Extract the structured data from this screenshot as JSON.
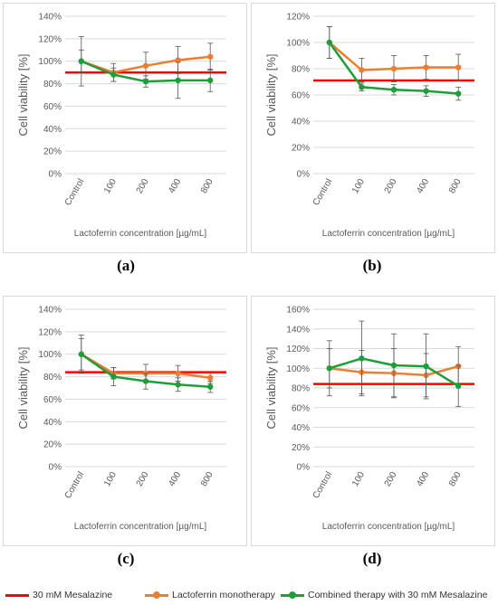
{
  "colors": {
    "mesalazine": "#ff0000",
    "monotherapy": "#ed7d31",
    "combined": "#1e9e3a",
    "error_bar": "#555555",
    "grid": "#d9d9d9",
    "axis_text": "#595959"
  },
  "legend": {
    "mesalazine": "30 mM Mesalazine",
    "monotherapy": "Lactoferrin monotherapy",
    "combined": "Combined therapy with 30 mM Mesalazine"
  },
  "panels": [
    {
      "label": "(a)"
    },
    {
      "label": "(b)"
    },
    {
      "label": "(c)"
    },
    {
      "label": "(d)"
    }
  ],
  "chart_data": [
    {
      "type": "line",
      "panel": "(a)",
      "ylabel": "Cell viability [%]",
      "xlabel": "Lactoferrin concentration [µg/mL]",
      "categories": [
        "Control",
        "100",
        "200",
        "400",
        "800"
      ],
      "ylim": [
        0,
        140
      ],
      "y_tick_step": 20,
      "y_tick_suffix": "%",
      "grid": true,
      "legend_placement": "bottom",
      "reference_line": {
        "name": "30 mM Mesalazine",
        "value": 90
      },
      "series": [
        {
          "name": "Lactoferrin monotherapy",
          "values": [
            100,
            90,
            96,
            101,
            104
          ],
          "errors": [
            22,
            8,
            12,
            12,
            12
          ]
        },
        {
          "name": "Combined therapy with 30 mM Mesalazine",
          "values": [
            100,
            88,
            82,
            83,
            83
          ],
          "errors": [
            10,
            6,
            5,
            16,
            10
          ]
        }
      ]
    },
    {
      "type": "line",
      "panel": "(b)",
      "ylabel": "Cell viability [%]",
      "xlabel": "Lactoferrin concentration [µg/mL]",
      "categories": [
        "Control",
        "100",
        "200",
        "400",
        "800"
      ],
      "ylim": [
        0,
        120
      ],
      "y_tick_step": 20,
      "y_tick_suffix": "%",
      "grid": true,
      "legend_placement": "bottom",
      "reference_line": {
        "name": "30 mM Mesalazine",
        "value": 71
      },
      "series": [
        {
          "name": "Lactoferrin monotherapy",
          "values": [
            100,
            79,
            80,
            81,
            81
          ],
          "errors": [
            12,
            9,
            10,
            9,
            10
          ]
        },
        {
          "name": "Combined therapy with 30 mM Mesalazine",
          "values": [
            100,
            66,
            64,
            63,
            61
          ],
          "errors": [
            12,
            3,
            4,
            4,
            5
          ]
        }
      ]
    },
    {
      "type": "line",
      "panel": "(c)",
      "ylabel": "Cell viability [%]",
      "xlabel": "Lactoferrin concentration [µg/mL]",
      "categories": [
        "Control",
        "100",
        "200",
        "400",
        "800"
      ],
      "ylim": [
        0,
        140
      ],
      "y_tick_step": 20,
      "y_tick_suffix": "%",
      "grid": true,
      "legend_placement": "bottom",
      "reference_line": {
        "name": "30 mM Mesalazine",
        "value": 84
      },
      "series": [
        {
          "name": "Lactoferrin monotherapy",
          "values": [
            100,
            83,
            83,
            83,
            79
          ],
          "errors": [
            17,
            5,
            8,
            7,
            5
          ]
        },
        {
          "name": "Combined therapy with 30 mM Mesalazine",
          "values": [
            100,
            80,
            76,
            73,
            71
          ],
          "errors": [
            14,
            8,
            7,
            6,
            5
          ]
        }
      ]
    },
    {
      "type": "line",
      "panel": "(d)",
      "ylabel": "Cell viability [%]",
      "xlabel": "Lactoferrin concentration [µg/mL]",
      "categories": [
        "Control",
        "100",
        "200",
        "400",
        "800"
      ],
      "ylim": [
        0,
        160
      ],
      "y_tick_step": 20,
      "y_tick_suffix": "%",
      "grid": true,
      "legend_placement": "bottom",
      "reference_line": {
        "name": "30 mM Mesalazine",
        "value": 84
      },
      "series": [
        {
          "name": "Lactoferrin monotherapy",
          "values": [
            100,
            96,
            95,
            93,
            102
          ],
          "errors": [
            28,
            22,
            25,
            22,
            20
          ]
        },
        {
          "name": "Combined therapy with 30 mM Mesalazine",
          "values": [
            100,
            110,
            103,
            102,
            82
          ],
          "errors": [
            20,
            38,
            32,
            33,
            21
          ]
        }
      ]
    }
  ]
}
